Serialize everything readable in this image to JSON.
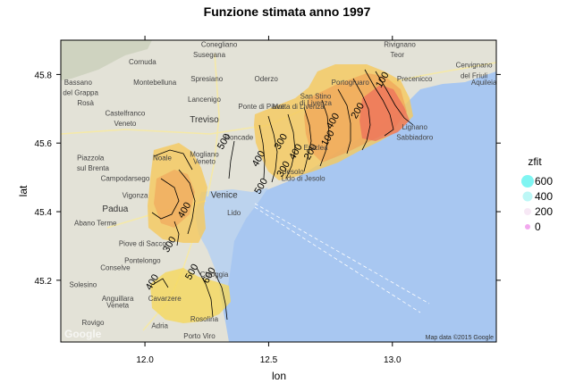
{
  "chart_data": {
    "type": "contour",
    "title": "Funzione stimata anno 1997",
    "xlabel": "lon",
    "ylabel": "lat",
    "xlim": [
      11.66,
      13.42
    ],
    "ylim": [
      45.02,
      45.9
    ],
    "x_ticks": [
      12.0,
      12.5,
      13.0
    ],
    "x_tick_labels": [
      "12.0",
      "12.5",
      "13.0"
    ],
    "y_ticks": [
      45.2,
      45.4,
      45.6,
      45.8
    ],
    "y_tick_labels": [
      "45.2",
      "45.4",
      "45.6",
      "45.8"
    ],
    "legend": {
      "title": "zfit",
      "placement": "right",
      "entries": [
        {
          "label": "600",
          "color": "#7ff5f2"
        },
        {
          "label": "400",
          "color": "#bdf7f6"
        },
        {
          "label": "200",
          "color": "#f7e8f5"
        },
        {
          "label": "0",
          "color": "#f2a8ee"
        }
      ]
    },
    "contour_labels": [
      {
        "text": "100",
        "lon": 12.97,
        "lat": 45.78
      },
      {
        "text": "200",
        "lon": 12.87,
        "lat": 45.69
      },
      {
        "text": "400",
        "lon": 12.77,
        "lat": 45.66
      },
      {
        "text": "100",
        "lon": 12.75,
        "lat": 45.61
      },
      {
        "text": "200",
        "lon": 12.68,
        "lat": 45.57
      },
      {
        "text": "400",
        "lon": 12.62,
        "lat": 45.57
      },
      {
        "text": "300",
        "lon": 12.56,
        "lat": 45.6
      },
      {
        "text": "300",
        "lon": 12.57,
        "lat": 45.52
      },
      {
        "text": "400",
        "lon": 12.47,
        "lat": 45.55
      },
      {
        "text": "500",
        "lon": 12.33,
        "lat": 45.6
      },
      {
        "text": "500",
        "lon": 12.48,
        "lat": 45.47
      },
      {
        "text": "400",
        "lon": 12.17,
        "lat": 45.4
      },
      {
        "text": "300",
        "lon": 12.11,
        "lat": 45.3
      },
      {
        "text": "500",
        "lon": 12.2,
        "lat": 45.22
      },
      {
        "text": "600",
        "lon": 12.27,
        "lat": 45.21
      },
      {
        "text": "400",
        "lon": 12.04,
        "lat": 45.19
      }
    ],
    "map_labels": [
      {
        "text": "Conegliano",
        "lon": 12.3,
        "lat": 45.88
      },
      {
        "text": "Susegana",
        "lon": 12.26,
        "lat": 45.85
      },
      {
        "text": "Rivignano",
        "lon": 13.03,
        "lat": 45.88
      },
      {
        "text": "Teor",
        "lon": 13.02,
        "lat": 45.85
      },
      {
        "text": "Cervignano",
        "lon": 13.33,
        "lat": 45.82
      },
      {
        "text": "del Friuli",
        "lon": 13.33,
        "lat": 45.79
      },
      {
        "text": "Aquileia",
        "lon": 13.37,
        "lat": 45.77
      },
      {
        "text": "Bassano",
        "lon": 11.73,
        "lat": 45.77
      },
      {
        "text": "del Grappa",
        "lon": 11.74,
        "lat": 45.74
      },
      {
        "text": "Cornuda",
        "lon": 11.99,
        "lat": 45.83
      },
      {
        "text": "Montebelluna",
        "lon": 12.04,
        "lat": 45.77
      },
      {
        "text": "Oderzo",
        "lon": 12.49,
        "lat": 45.78
      },
      {
        "text": "Spresiano",
        "lon": 12.25,
        "lat": 45.78
      },
      {
        "text": "Lancenigo",
        "lon": 12.24,
        "lat": 45.72
      },
      {
        "text": "Rosà",
        "lon": 11.76,
        "lat": 45.71
      },
      {
        "text": "Castelfranco",
        "lon": 11.92,
        "lat": 45.68
      },
      {
        "text": "Veneto",
        "lon": 11.92,
        "lat": 45.65
      },
      {
        "text": "Treviso",
        "lon": 12.24,
        "lat": 45.66
      },
      {
        "text": "Ponte di Piave",
        "lon": 12.47,
        "lat": 45.7
      },
      {
        "text": "Portogruaro",
        "lon": 12.83,
        "lat": 45.77
      },
      {
        "text": "San Stino",
        "lon": 12.69,
        "lat": 45.73
      },
      {
        "text": "di Livenza",
        "lon": 12.69,
        "lat": 45.71
      },
      {
        "text": "Motta di Livenza",
        "lon": 12.62,
        "lat": 45.7
      },
      {
        "text": "Precenicco",
        "lon": 13.09,
        "lat": 45.78
      },
      {
        "text": "Lignano",
        "lon": 13.09,
        "lat": 45.64
      },
      {
        "text": "Sabbiadoro",
        "lon": 13.09,
        "lat": 45.61
      },
      {
        "text": "Roncade",
        "lon": 12.38,
        "lat": 45.61
      },
      {
        "text": "Mogliano",
        "lon": 12.24,
        "lat": 45.56
      },
      {
        "text": "Veneto",
        "lon": 12.24,
        "lat": 45.54
      },
      {
        "text": "Piazzola",
        "lon": 11.78,
        "lat": 45.55
      },
      {
        "text": "sul Brenta",
        "lon": 11.79,
        "lat": 45.52
      },
      {
        "text": "Campodarsego",
        "lon": 11.92,
        "lat": 45.49
      },
      {
        "text": "Noale",
        "lon": 12.07,
        "lat": 45.55
      },
      {
        "text": "Eraclea",
        "lon": 12.69,
        "lat": 45.58
      },
      {
        "text": "Jesolo",
        "lon": 12.6,
        "lat": 45.51
      },
      {
        "text": "Lido di Jesolo",
        "lon": 12.64,
        "lat": 45.49
      },
      {
        "text": "Vigonza",
        "lon": 11.96,
        "lat": 45.44
      },
      {
        "text": "Padua",
        "lon": 11.88,
        "lat": 45.4
      },
      {
        "text": "Venice",
        "lon": 12.32,
        "lat": 45.44
      },
      {
        "text": "Lido",
        "lon": 12.36,
        "lat": 45.39
      },
      {
        "text": "Abano Terme",
        "lon": 11.8,
        "lat": 45.36
      },
      {
        "text": "Piove di Sacco",
        "lon": 11.99,
        "lat": 45.3
      },
      {
        "text": "Pontelongo",
        "lon": 11.99,
        "lat": 45.25
      },
      {
        "text": "Conselve",
        "lon": 11.88,
        "lat": 45.23
      },
      {
        "text": "Chioggia",
        "lon": 12.28,
        "lat": 45.21
      },
      {
        "text": "Solesino",
        "lon": 11.75,
        "lat": 45.18
      },
      {
        "text": "Anguillara",
        "lon": 11.89,
        "lat": 45.14
      },
      {
        "text": "Veneta",
        "lon": 11.89,
        "lat": 45.12
      },
      {
        "text": "Cavarzere",
        "lon": 12.08,
        "lat": 45.14
      },
      {
        "text": "Rovigo",
        "lon": 11.79,
        "lat": 45.07
      },
      {
        "text": "Adria",
        "lon": 12.06,
        "lat": 45.06
      },
      {
        "text": "Rosolina",
        "lon": 12.24,
        "lat": 45.08
      },
      {
        "text": "Porto Viro",
        "lon": 12.22,
        "lat": 45.03
      }
    ],
    "credit": "Map data ©2015 Google",
    "watermark": "Google"
  }
}
